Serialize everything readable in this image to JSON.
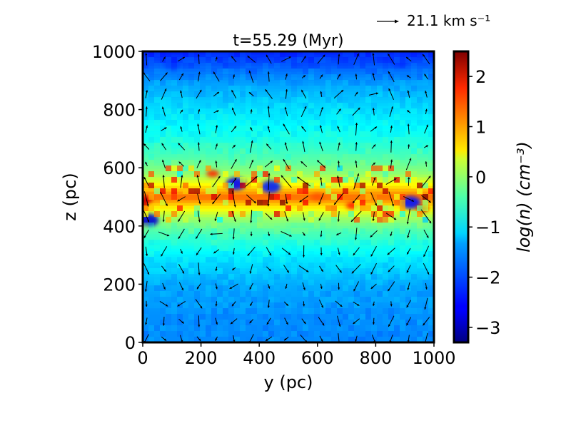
{
  "chart_data": {
    "type": "heatmap",
    "title": "t=55.29 (Myr)",
    "xlabel": "y (pc)",
    "ylabel": "z (pc)",
    "xlim": [
      0,
      1000
    ],
    "ylim": [
      0,
      1000
    ],
    "xticks": [
      "0",
      "200",
      "400",
      "600",
      "800",
      "1000"
    ],
    "yticks": [
      "0",
      "200",
      "400",
      "600",
      "800",
      "1000"
    ],
    "colorbar": {
      "label": "log(n) (cm⁻³)",
      "range": [
        -3.3,
        2.5
      ],
      "ticks": [
        "2",
        "1",
        "0",
        "−1",
        "−2",
        "−3"
      ],
      "tick_values": [
        2,
        1,
        0,
        -1,
        -2,
        -3
      ],
      "colormap": "jet"
    },
    "quiver_key": {
      "label": "21.1 km s⁻¹",
      "speed_kms": 21.1
    },
    "density_profile": {
      "description_z_pc": [
        0,
        100,
        200,
        300,
        380,
        430,
        470,
        500,
        540,
        580,
        640,
        700,
        800,
        900,
        1000
      ],
      "log_n": [
        -1.8,
        -1.75,
        -1.6,
        -1.2,
        -0.7,
        -0.2,
        0.5,
        1.2,
        0.4,
        -0.3,
        -0.7,
        -1.0,
        -1.3,
        -1.7,
        -2.4
      ]
    },
    "cold_clumps": [
      {
        "y": 320,
        "z": 545,
        "log_n": -2.6
      },
      {
        "y": 440,
        "z": 535,
        "log_n": -2.4
      },
      {
        "y": 20,
        "z": 420,
        "log_n": -2.8
      },
      {
        "y": 920,
        "z": 480,
        "log_n": -2.5
      },
      {
        "y": 100,
        "z": 960,
        "log_n": -2.3
      },
      {
        "y": 880,
        "z": 970,
        "log_n": -2.3
      }
    ],
    "dense_knots": [
      {
        "y": 10,
        "z": 490,
        "log_n": 2.0
      },
      {
        "y": 240,
        "z": 580,
        "log_n": 1.5
      },
      {
        "y": 720,
        "z": 470,
        "log_n": 1.6
      },
      {
        "y": 960,
        "z": 460,
        "log_n": 2.1
      },
      {
        "y": 600,
        "z": 500,
        "log_n": 1.3
      }
    ]
  },
  "colors": {
    "frame": "#000000",
    "arrow": "#000000",
    "background": "#ffffff"
  }
}
